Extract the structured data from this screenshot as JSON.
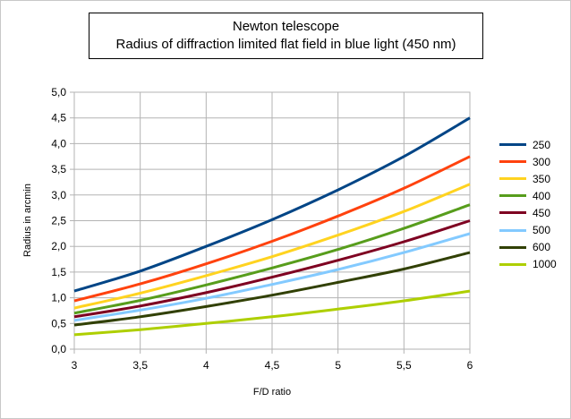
{
  "chart_data": {
    "type": "line",
    "title": "Newton telescope",
    "subtitle": "Radius of diffraction limited flat field in blue light (450 nm)",
    "xlabel": "F/D ratio",
    "ylabel": "Radius in arcmin",
    "xlim": [
      3,
      6
    ],
    "ylim": [
      0,
      5
    ],
    "x_ticks": [
      "3",
      "3,5",
      "4",
      "4,5",
      "5",
      "5,5",
      "6"
    ],
    "y_ticks": [
      "0,0",
      "0,5",
      "1,0",
      "1,5",
      "2,0",
      "2,5",
      "3,0",
      "3,5",
      "4,0",
      "4,5",
      "5,0"
    ],
    "grid": true,
    "legend_position": "right",
    "x": [
      3,
      3.5,
      4,
      4.5,
      5,
      5.5,
      6
    ],
    "series": [
      {
        "name": "250",
        "color": "#004586",
        "values": [
          1.13,
          1.52,
          2.0,
          2.52,
          3.1,
          3.75,
          4.5
        ]
      },
      {
        "name": "300",
        "color": "#ff420e",
        "values": [
          0.94,
          1.27,
          1.66,
          2.1,
          2.59,
          3.13,
          3.75
        ]
      },
      {
        "name": "350",
        "color": "#ffd320",
        "values": [
          0.8,
          1.09,
          1.43,
          1.8,
          2.22,
          2.68,
          3.21
        ]
      },
      {
        "name": "400",
        "color": "#579d1c",
        "values": [
          0.7,
          0.95,
          1.25,
          1.58,
          1.94,
          2.35,
          2.81
        ]
      },
      {
        "name": "450",
        "color": "#7e0021",
        "values": [
          0.63,
          0.84,
          1.1,
          1.4,
          1.73,
          2.09,
          2.5
        ]
      },
      {
        "name": "500",
        "color": "#83caff",
        "values": [
          0.56,
          0.76,
          0.99,
          1.26,
          1.55,
          1.88,
          2.25
        ]
      },
      {
        "name": "600",
        "color": "#314004",
        "values": [
          0.47,
          0.63,
          0.83,
          1.05,
          1.3,
          1.56,
          1.88
        ]
      },
      {
        "name": "1000",
        "color": "#aecf00",
        "values": [
          0.28,
          0.38,
          0.5,
          0.63,
          0.78,
          0.94,
          1.13
        ]
      }
    ]
  }
}
